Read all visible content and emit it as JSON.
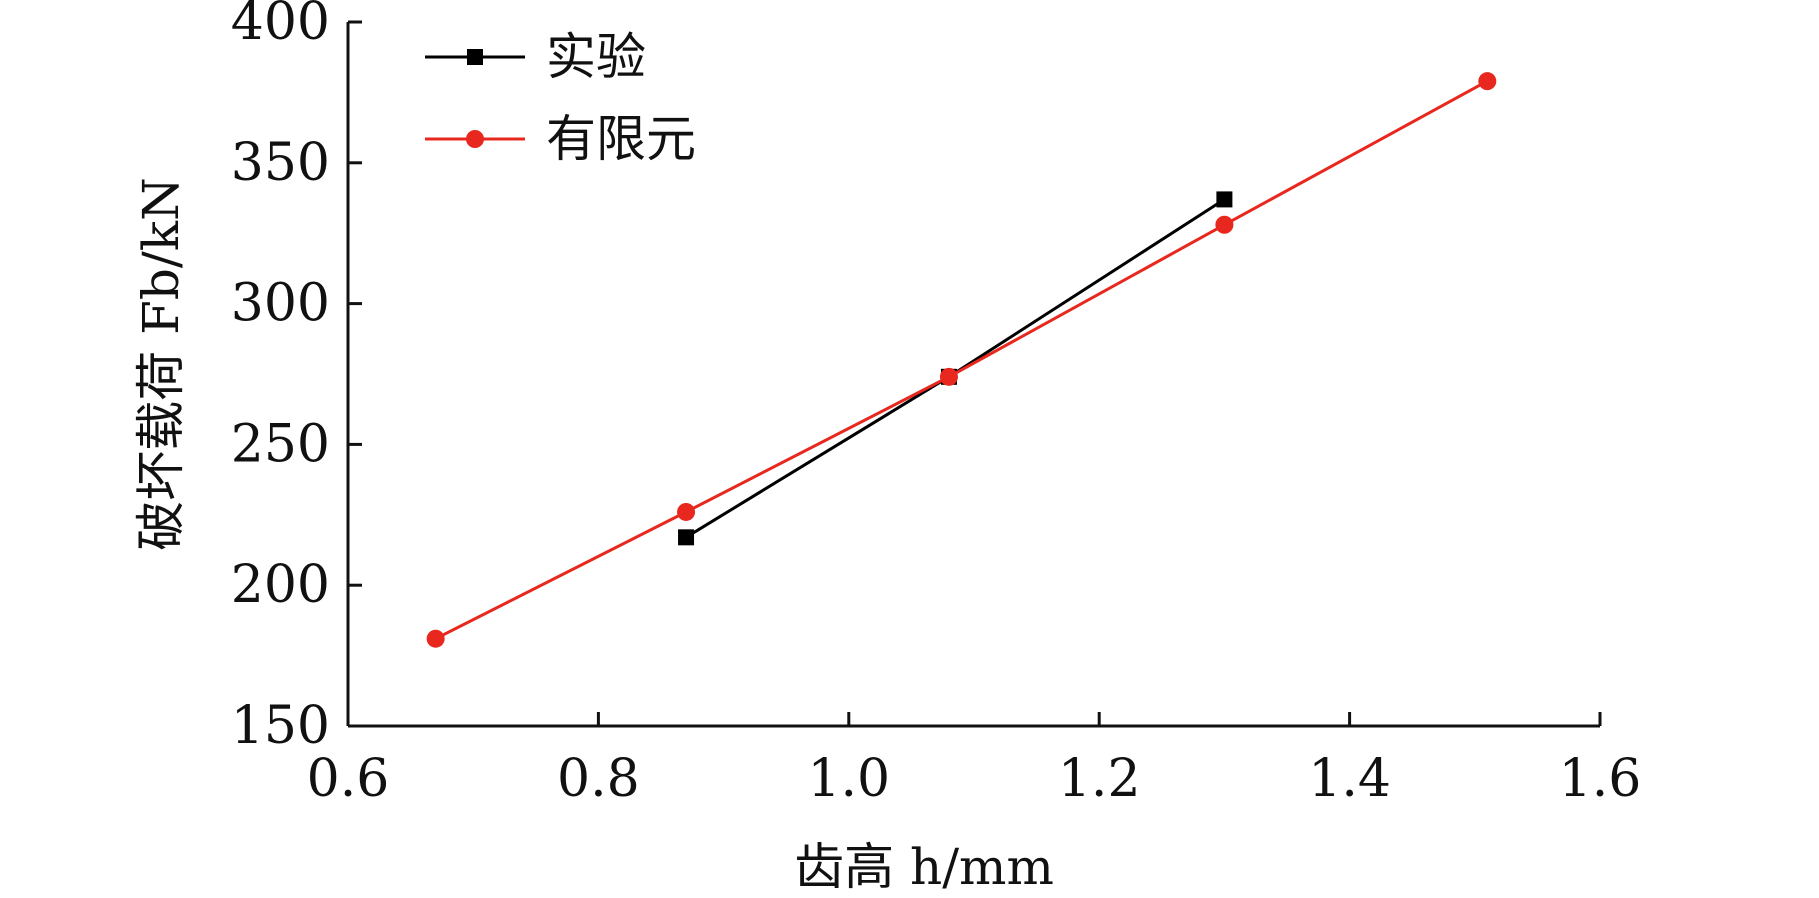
{
  "chart_data": {
    "type": "line",
    "xlabel": "齿高 h/mm",
    "ylabel": "破坏载荷 Fb/kN",
    "xlim": [
      0.6,
      1.6
    ],
    "ylim": [
      150,
      400
    ],
    "xticks": [
      0.6,
      0.8,
      1.0,
      1.2,
      1.4,
      1.6
    ],
    "yticks": [
      150,
      200,
      250,
      300,
      350,
      400
    ],
    "xtick_labels": [
      "0.6",
      "0.8",
      "1.0",
      "1.2",
      "1.4",
      "1.6"
    ],
    "ytick_labels": [
      "150",
      "200",
      "250",
      "300",
      "350",
      "400"
    ],
    "grid": false,
    "legend_position": "top-left",
    "series": [
      {
        "name": "实验",
        "color": "#000000",
        "marker": "square",
        "x": [
          0.87,
          1.08,
          1.3
        ],
        "y": [
          217,
          274,
          337
        ]
      },
      {
        "name": "有限元",
        "color": "#e8281e",
        "marker": "circle",
        "x": [
          0.67,
          0.87,
          1.08,
          1.3,
          1.51
        ],
        "y": [
          181,
          226,
          274,
          328,
          379
        ]
      }
    ]
  }
}
